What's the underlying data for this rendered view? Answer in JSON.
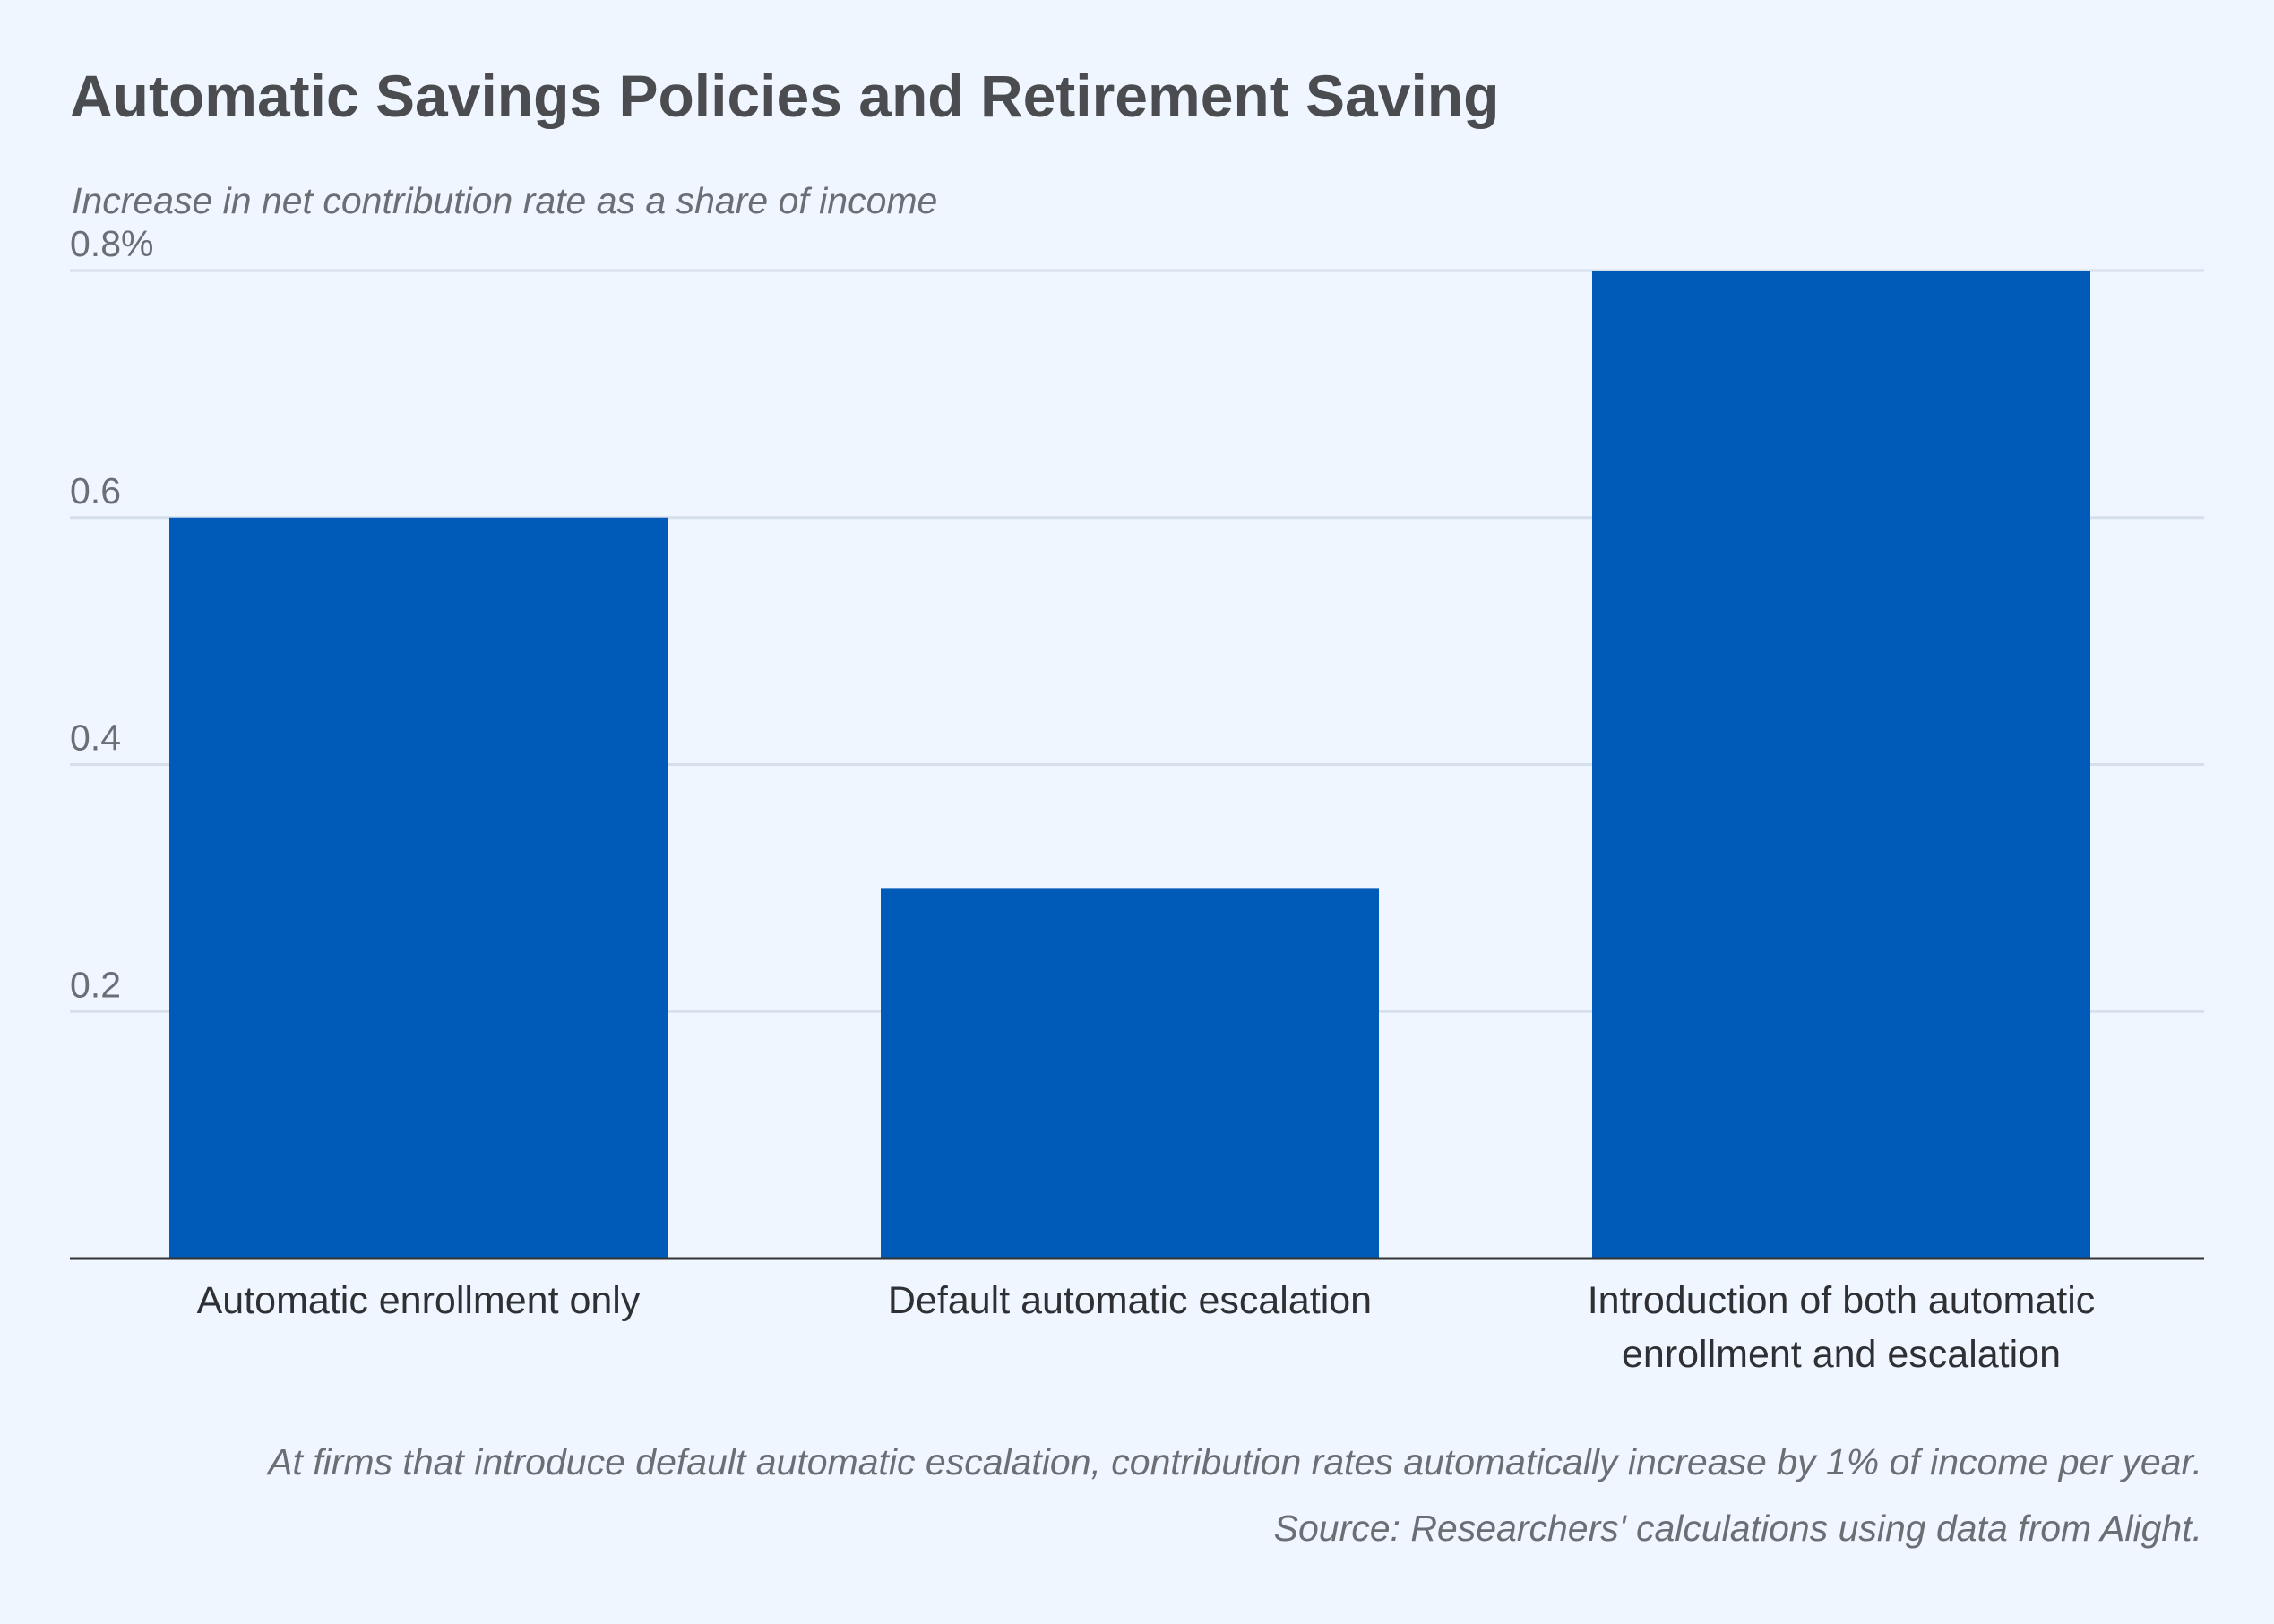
{
  "chart_data": {
    "type": "bar",
    "title": "Automatic Savings Policies and Retirement Saving",
    "subtitle": "Increase in net contribution rate as a share of income",
    "categories": [
      [
        "Automatic enrollment only"
      ],
      [
        "Default automatic escalation"
      ],
      [
        "Introduction of both automatic",
        "enrollment and escalation"
      ]
    ],
    "values": [
      0.6,
      0.3,
      0.8
    ],
    "yticks": [
      "0.2",
      "0.4",
      "0.6",
      "0.8%"
    ],
    "ytick_values": [
      0.2,
      0.4,
      0.6,
      0.8
    ],
    "ylim": [
      0,
      0.8
    ],
    "grid": true,
    "bar_color": "#005bb8",
    "note": "At firms that introduce default automatic escalation, contribution rates automatically increase by 1% of income per year.",
    "source": "Source: Researchers' calculations using data from Alight."
  }
}
